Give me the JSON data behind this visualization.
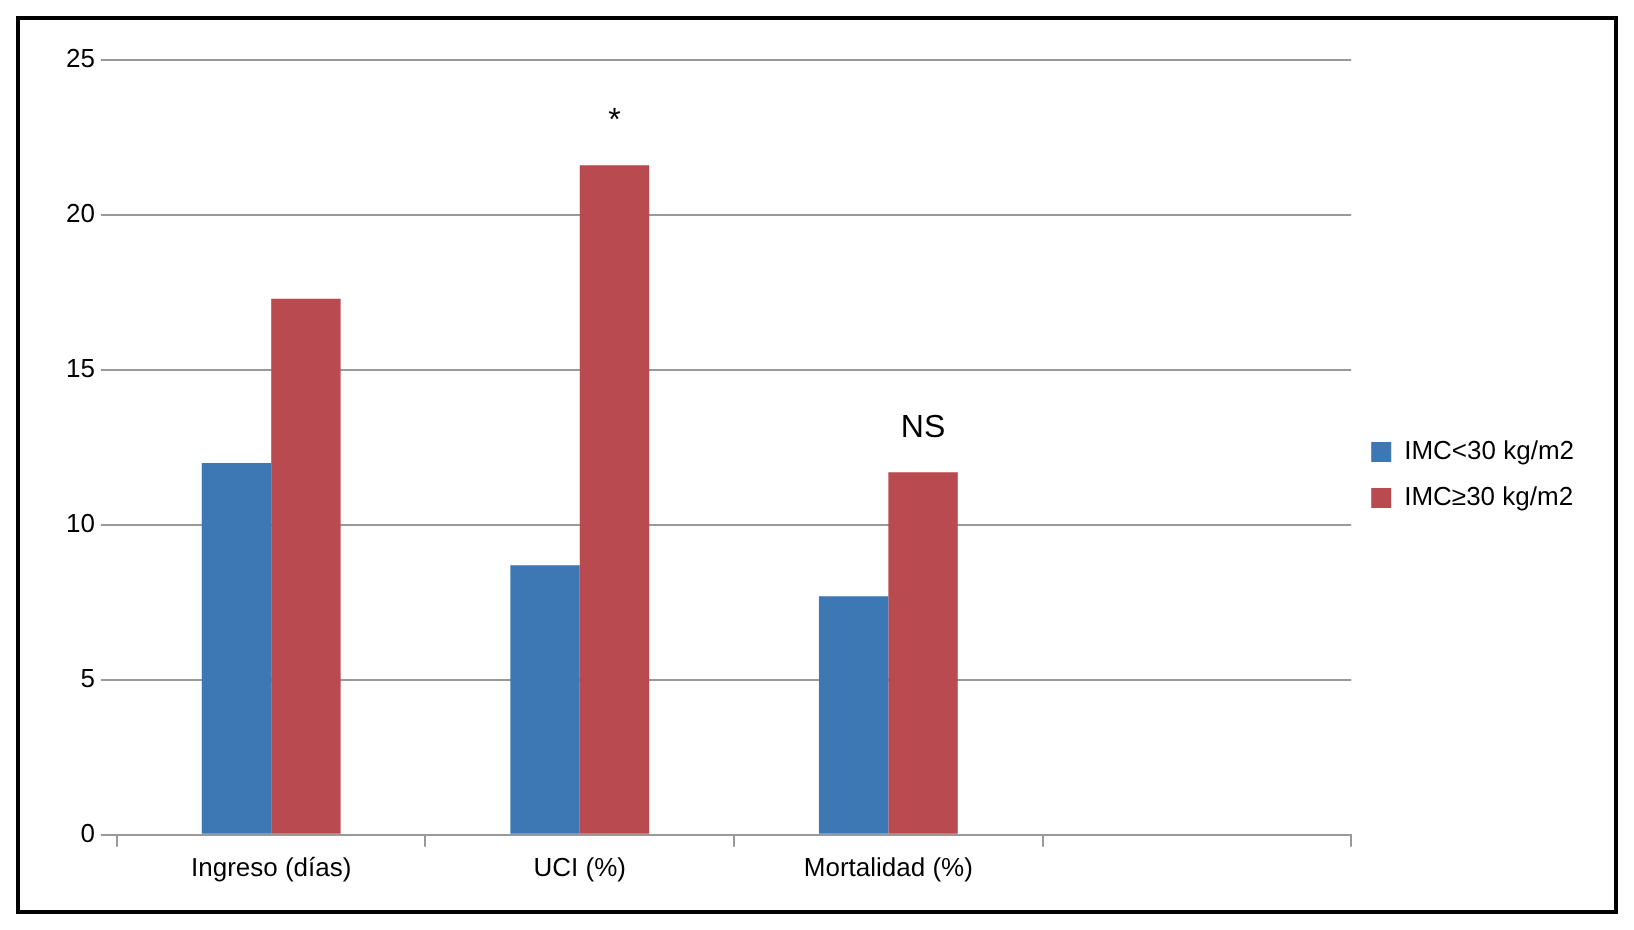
{
  "chart_data": {
    "type": "bar",
    "categories": [
      "Ingreso (días)",
      "UCI (%)",
      "Mortalidad (%)",
      null
    ],
    "series": [
      {
        "name": "IMC<30 kg/m2",
        "color": "#3d78b4",
        "values": [
          12.0,
          8.7,
          7.7,
          null
        ]
      },
      {
        "name": "IMC≥30 kg/m2",
        "color": "#b94b50",
        "values": [
          17.3,
          21.6,
          11.7,
          null
        ]
      }
    ],
    "ylim": [
      0,
      25
    ],
    "yticks": [
      0,
      5,
      10,
      15,
      20,
      25
    ],
    "grid": "y",
    "legend": "right",
    "annotations": [
      {
        "text": "*",
        "x": "UCI (%)",
        "y": 21.6
      },
      {
        "text": "NS",
        "x": "Mortalidad (%)",
        "y": 11.7
      }
    ]
  }
}
